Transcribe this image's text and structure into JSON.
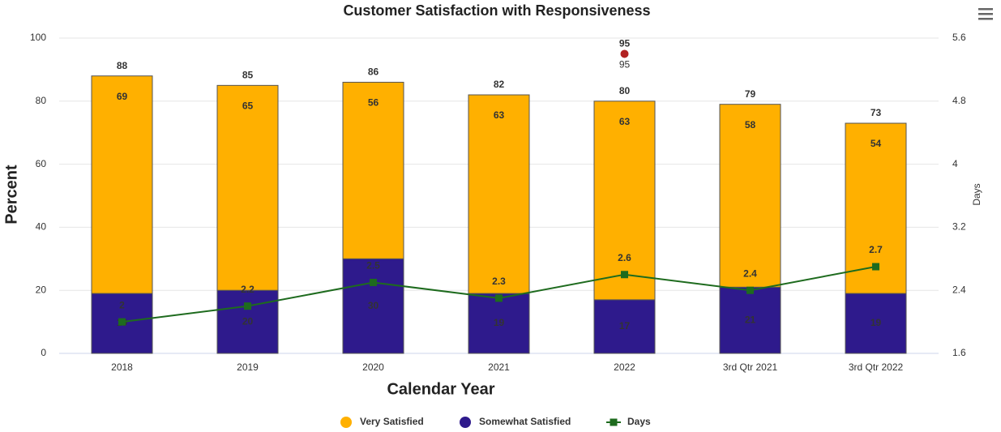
{
  "chart_data": {
    "type": "bar",
    "stacked": true,
    "title": "Customer Satisfaction with Responsiveness",
    "x_label": "Calendar Year",
    "y_label": "Percent",
    "y2_label": "Days",
    "categories": [
      "2018",
      "2019",
      "2020",
      "2021",
      "2022",
      "3rd Qtr 2021",
      "3rd Qtr 2022"
    ],
    "series": [
      {
        "name": "Very Satisfied",
        "type": "bar",
        "color": "#ffb000",
        "values": [
          69,
          65,
          56,
          63,
          63,
          58,
          54
        ]
      },
      {
        "name": "Somewhat Satisfied",
        "type": "bar",
        "color": "#2e1a8c",
        "values": [
          19,
          20,
          30,
          19,
          17,
          21,
          19
        ]
      },
      {
        "name": "Days",
        "type": "line",
        "axis": "y2",
        "color": "#1e6b1e",
        "values": [
          2,
          2.2,
          2.5,
          2.3,
          2.6,
          2.4,
          2.7
        ]
      }
    ],
    "totals": [
      88,
      85,
      86,
      82,
      80,
      79,
      73
    ],
    "markers": [
      {
        "category": "2022",
        "value": 95,
        "color": "#b22222"
      }
    ],
    "ylim": [
      0,
      100
    ],
    "yticks": [
      0,
      20,
      40,
      60,
      80,
      100
    ],
    "y2lim": [
      1.6,
      5.6
    ],
    "y2ticks": [
      1.6,
      2.4,
      3.2,
      4,
      4.8,
      5.6
    ],
    "grid": true,
    "legend": "bottom"
  }
}
